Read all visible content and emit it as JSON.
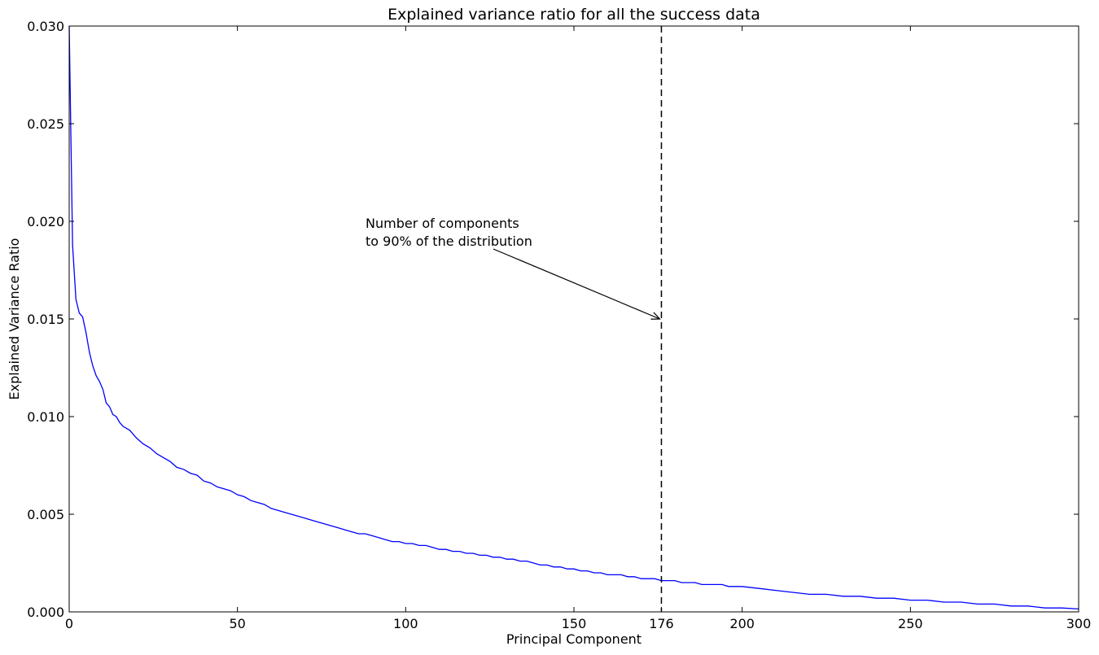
{
  "chart_data": {
    "type": "line",
    "title": "Explained variance ratio for all the success data",
    "xlabel": "Principal Component",
    "ylabel": "Explained Variance Ratio",
    "xlim": [
      0,
      300
    ],
    "ylim": [
      0,
      0.03
    ],
    "grid": false,
    "x_ticks": [
      0,
      50,
      100,
      150,
      176,
      200,
      250,
      300
    ],
    "x_tick_labels": [
      "0",
      "50",
      "100",
      "150",
      "176",
      "200",
      "250",
      "300"
    ],
    "y_ticks": [
      0,
      0.005,
      0.01,
      0.015,
      0.02,
      0.025,
      0.03
    ],
    "y_tick_labels": [
      "0.000",
      "0.005",
      "0.010",
      "0.015",
      "0.020",
      "0.025",
      "0.030"
    ],
    "series": [
      {
        "color": "#0000ff",
        "points": [
          [
            0,
            0.03
          ],
          [
            1,
            0.0188
          ],
          [
            2,
            0.016
          ],
          [
            3,
            0.0153
          ],
          [
            4,
            0.0151
          ],
          [
            5,
            0.0143
          ],
          [
            6,
            0.0133
          ],
          [
            7,
            0.0126
          ],
          [
            8,
            0.0121
          ],
          [
            9,
            0.0118
          ],
          [
            10,
            0.0114
          ],
          [
            11,
            0.0107
          ],
          [
            12,
            0.0105
          ],
          [
            13,
            0.0101
          ],
          [
            14,
            0.01
          ],
          [
            15,
            0.0097
          ],
          [
            16,
            0.0095
          ],
          [
            18,
            0.0093
          ],
          [
            20,
            0.0089
          ],
          [
            22,
            0.0086
          ],
          [
            24,
            0.0084
          ],
          [
            26,
            0.0081
          ],
          [
            28,
            0.0079
          ],
          [
            30,
            0.0077
          ],
          [
            32,
            0.0074
          ],
          [
            34,
            0.0073
          ],
          [
            36,
            0.0071
          ],
          [
            38,
            0.007
          ],
          [
            40,
            0.0067
          ],
          [
            42,
            0.0066
          ],
          [
            44,
            0.0064
          ],
          [
            46,
            0.0063
          ],
          [
            48,
            0.0062
          ],
          [
            50,
            0.006
          ],
          [
            52,
            0.0059
          ],
          [
            54,
            0.0057
          ],
          [
            56,
            0.0056
          ],
          [
            58,
            0.0055
          ],
          [
            60,
            0.0053
          ],
          [
            62,
            0.0052
          ],
          [
            64,
            0.0051
          ],
          [
            66,
            0.005
          ],
          [
            68,
            0.0049
          ],
          [
            70,
            0.0048
          ],
          [
            72,
            0.0047
          ],
          [
            74,
            0.0046
          ],
          [
            76,
            0.0045
          ],
          [
            78,
            0.0044
          ],
          [
            80,
            0.0043
          ],
          [
            82,
            0.0042
          ],
          [
            84,
            0.0041
          ],
          [
            86,
            0.004
          ],
          [
            88,
            0.004
          ],
          [
            90,
            0.0039
          ],
          [
            92,
            0.0038
          ],
          [
            94,
            0.0037
          ],
          [
            96,
            0.0036
          ],
          [
            98,
            0.0036
          ],
          [
            100,
            0.0035
          ],
          [
            102,
            0.0035
          ],
          [
            104,
            0.0034
          ],
          [
            106,
            0.0034
          ],
          [
            108,
            0.0033
          ],
          [
            110,
            0.0032
          ],
          [
            112,
            0.0032
          ],
          [
            114,
            0.0031
          ],
          [
            116,
            0.0031
          ],
          [
            118,
            0.003
          ],
          [
            120,
            0.003
          ],
          [
            122,
            0.0029
          ],
          [
            124,
            0.0029
          ],
          [
            126,
            0.0028
          ],
          [
            128,
            0.0028
          ],
          [
            130,
            0.0027
          ],
          [
            132,
            0.0027
          ],
          [
            134,
            0.0026
          ],
          [
            136,
            0.0026
          ],
          [
            138,
            0.0025
          ],
          [
            140,
            0.0024
          ],
          [
            142,
            0.0024
          ],
          [
            144,
            0.0023
          ],
          [
            146,
            0.0023
          ],
          [
            148,
            0.0022
          ],
          [
            150,
            0.0022
          ],
          [
            152,
            0.0021
          ],
          [
            154,
            0.0021
          ],
          [
            156,
            0.002
          ],
          [
            158,
            0.002
          ],
          [
            160,
            0.0019
          ],
          [
            162,
            0.0019
          ],
          [
            164,
            0.0019
          ],
          [
            166,
            0.0018
          ],
          [
            168,
            0.0018
          ],
          [
            170,
            0.0017
          ],
          [
            172,
            0.0017
          ],
          [
            174,
            0.0017
          ],
          [
            176,
            0.0016
          ],
          [
            178,
            0.0016
          ],
          [
            180,
            0.0016
          ],
          [
            182,
            0.0015
          ],
          [
            184,
            0.0015
          ],
          [
            186,
            0.0015
          ],
          [
            188,
            0.0014
          ],
          [
            190,
            0.0014
          ],
          [
            192,
            0.0014
          ],
          [
            194,
            0.0014
          ],
          [
            196,
            0.0013
          ],
          [
            198,
            0.0013
          ],
          [
            200,
            0.0013
          ],
          [
            205,
            0.0012
          ],
          [
            210,
            0.0011
          ],
          [
            215,
            0.001
          ],
          [
            220,
            0.0009
          ],
          [
            225,
            0.0009
          ],
          [
            230,
            0.0008
          ],
          [
            235,
            0.0008
          ],
          [
            240,
            0.0007
          ],
          [
            245,
            0.0007
          ],
          [
            250,
            0.0006
          ],
          [
            255,
            0.0006
          ],
          [
            260,
            0.0005
          ],
          [
            265,
            0.0005
          ],
          [
            270,
            0.0004
          ],
          [
            275,
            0.0004
          ],
          [
            280,
            0.0003
          ],
          [
            285,
            0.0003
          ],
          [
            290,
            0.0002
          ],
          [
            295,
            0.0002
          ],
          [
            300,
            0.00015
          ]
        ]
      }
    ],
    "reference_line": {
      "orientation": "vertical",
      "x": 176,
      "style": "dashed",
      "color": "#000000"
    },
    "annotation": {
      "lines": [
        "Number of components",
        "to 90% of the distribution"
      ],
      "arrow_target": [
        176,
        0.015
      ]
    }
  }
}
